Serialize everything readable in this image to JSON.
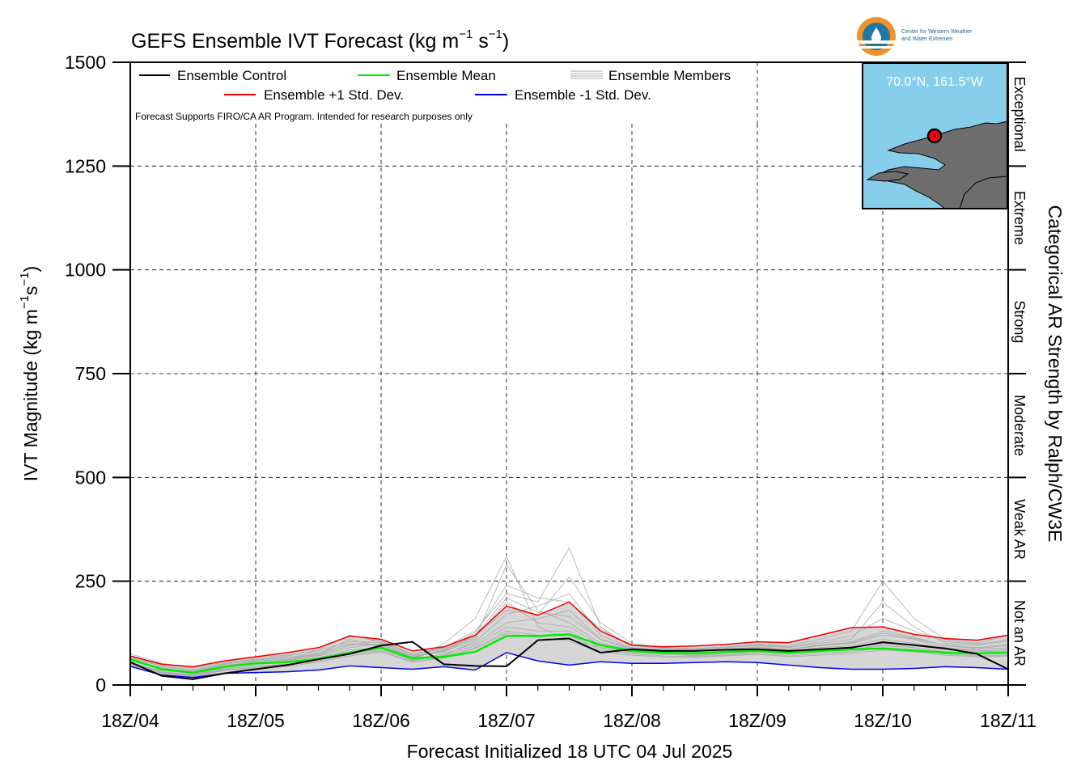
{
  "title_main": "GEFS Ensemble IVT Forecast (kg m",
  "title_exp1": "−1",
  "title_mid": " s",
  "title_exp2": "−1",
  "title_end": ")",
  "ylabel": {
    "main": "IVT Magnitude (kg m",
    "exp1": "−1",
    "mid": "s",
    "exp2": "−1",
    "end": ")"
  },
  "xlabel": "Forecast Initialized 18 UTC 04 Jul 2025",
  "right_label": "Categorical AR Strength by Ralph/CW3E",
  "note": "Forecast Supports FIRO/CA AR Program. Intended for research purposes only",
  "inset_location": "70.0°N, 161.5°W",
  "logo_line1": "Center for Western Weather",
  "logo_line2": "and Water Extremes",
  "categories": [
    {
      "label": "Exceptional",
      "lo": 1250,
      "hi": 1500
    },
    {
      "label": "Extreme",
      "lo": 1000,
      "hi": 1250
    },
    {
      "label": "Strong",
      "lo": 750,
      "hi": 1000
    },
    {
      "label": "Moderate",
      "lo": 500,
      "hi": 750
    },
    {
      "label": "Weak AR",
      "lo": 250,
      "hi": 500
    },
    {
      "label": "Not an AR",
      "lo": 0,
      "hi": 250
    }
  ],
  "colors": {
    "control": "#000000",
    "mean": "#00ee00",
    "plus_std": "#ee0000",
    "minus_std": "#0000ee",
    "members": "#aaaaaa",
    "spread_fill": "#d6d6d6",
    "ocean": "#87ceeb",
    "land": "#6e6e6e",
    "point": "#ff0000"
  },
  "chart_data": {
    "type": "line",
    "title": "GEFS Ensemble IVT Forecast (kg m−1 s−1)",
    "xlabel": "Forecast Initialized 18 UTC 04 Jul 2025",
    "ylabel": "IVT Magnitude (kg m−1s−1)",
    "ylim": [
      0,
      1500
    ],
    "yticks": [
      0,
      250,
      500,
      750,
      1000,
      1250,
      1500
    ],
    "xlim": [
      0,
      168
    ],
    "x_unit": "forecast hour",
    "xtick_hours": [
      0,
      24,
      48,
      72,
      96,
      120,
      144,
      168
    ],
    "xtick_labels": [
      "18Z/04",
      "18Z/05",
      "18Z/06",
      "18Z/07",
      "18Z/08",
      "18Z/09",
      "18Z/10",
      "18Z/11"
    ],
    "grid": true,
    "legend_position": "top-left",
    "x": [
      0,
      6,
      12,
      18,
      24,
      30,
      36,
      42,
      48,
      54,
      60,
      66,
      72,
      78,
      84,
      90,
      96,
      102,
      108,
      114,
      120,
      126,
      132,
      138,
      144,
      150,
      156,
      162,
      168
    ],
    "series": [
      {
        "name": "Ensemble Control",
        "role": "control",
        "values": [
          55,
          22,
          14,
          28,
          38,
          48,
          62,
          75,
          95,
          104,
          50,
          46,
          45,
          108,
          112,
          78,
          86,
          82,
          82,
          85,
          86,
          82,
          86,
          90,
          103,
          96,
          88,
          75,
          38
        ]
      },
      {
        "name": "Ensemble Mean",
        "role": "mean",
        "values": [
          62,
          38,
          30,
          44,
          52,
          55,
          63,
          78,
          90,
          64,
          68,
          80,
          118,
          118,
          122,
          96,
          82,
          78,
          76,
          80,
          82,
          78,
          82,
          86,
          88,
          83,
          78,
          76,
          78
        ]
      },
      {
        "name": "Ensemble +1 Std. Dev.",
        "role": "plus_std",
        "values": [
          70,
          50,
          44,
          58,
          68,
          78,
          90,
          118,
          110,
          82,
          92,
          120,
          190,
          168,
          200,
          130,
          96,
          92,
          94,
          98,
          104,
          102,
          120,
          138,
          140,
          122,
          112,
          108,
          120
        ]
      },
      {
        "name": "Ensemble -1 Std. Dev.",
        "role": "minus_std",
        "values": [
          45,
          24,
          18,
          28,
          30,
          32,
          36,
          46,
          42,
          38,
          44,
          36,
          78,
          58,
          48,
          56,
          52,
          52,
          54,
          56,
          54,
          48,
          42,
          38,
          38,
          40,
          44,
          42,
          38
        ]
      },
      {
        "name": "Ensemble Members",
        "role": "members",
        "members": [
          [
            60,
            40,
            32,
            48,
            55,
            60,
            72,
            95,
            110,
            70,
            80,
            110,
            290,
            180,
            150,
            100,
            85,
            80,
            80,
            85,
            90,
            85,
            95,
            100,
            120,
            110,
            90,
            85,
            90
          ],
          [
            55,
            30,
            25,
            40,
            45,
            50,
            60,
            80,
            90,
            60,
            100,
            160,
            310,
            140,
            110,
            90,
            80,
            75,
            70,
            75,
            80,
            75,
            80,
            85,
            95,
            90,
            80,
            75,
            80
          ],
          [
            65,
            45,
            35,
            50,
            60,
            70,
            85,
            120,
            105,
            75,
            90,
            130,
            220,
            200,
            330,
            140,
            90,
            85,
            85,
            90,
            95,
            90,
            100,
            110,
            200,
            140,
            100,
            95,
            110
          ],
          [
            70,
            50,
            40,
            55,
            62,
            65,
            75,
            100,
            95,
            65,
            85,
            120,
            180,
            170,
            260,
            150,
            100,
            90,
            88,
            92,
            98,
            95,
            110,
            130,
            250,
            160,
            110,
            100,
            120
          ],
          [
            50,
            35,
            28,
            42,
            50,
            55,
            65,
            85,
            88,
            62,
            75,
            100,
            150,
            160,
            180,
            110,
            85,
            80,
            78,
            82,
            85,
            80,
            90,
            95,
            110,
            100,
            88,
            82,
            85
          ],
          [
            58,
            42,
            30,
            45,
            52,
            58,
            70,
            90,
            100,
            68,
            82,
            115,
            200,
            150,
            140,
            95,
            82,
            78,
            76,
            80,
            84,
            78,
            86,
            92,
            100,
            95,
            85,
            80,
            82
          ],
          [
            62,
            38,
            26,
            44,
            58,
            62,
            74,
            110,
            92,
            58,
            72,
            105,
            170,
            190,
            220,
            120,
            88,
            82,
            80,
            86,
            92,
            86,
            96,
            104,
            130,
            115,
            95,
            88,
            95
          ],
          [
            45,
            28,
            20,
            35,
            40,
            45,
            55,
            70,
            80,
            55,
            65,
            90,
            130,
            120,
            120,
            85,
            75,
            70,
            68,
            72,
            76,
            70,
            76,
            80,
            90,
            85,
            75,
            70,
            72
          ],
          [
            75,
            52,
            42,
            58,
            66,
            72,
            82,
            105,
            102,
            72,
            88,
            125,
            240,
            210,
            200,
            135,
            95,
            88,
            86,
            90,
            96,
            92,
            104,
            118,
            160,
            130,
            105,
            98,
            105
          ],
          [
            52,
            32,
            24,
            38,
            46,
            50,
            62,
            78,
            85,
            60,
            70,
            95,
            140,
            130,
            130,
            90,
            78,
            74,
            72,
            76,
            80,
            74,
            82,
            86,
            96,
            90,
            80,
            76,
            78
          ],
          [
            68,
            46,
            36,
            52,
            60,
            66,
            78,
            98,
            98,
            66,
            84,
            118,
            210,
            175,
            165,
            110,
            88,
            84,
            82,
            86,
            90,
            86,
            94,
            102,
            125,
            112,
            96,
            90,
            98
          ],
          [
            48,
            30,
            22,
            36,
            42,
            48,
            58,
            74,
            82,
            56,
            66,
            88,
            125,
            115,
            105,
            80,
            72,
            68,
            66,
            70,
            74,
            68,
            72,
            76,
            84,
            80,
            72,
            68,
            70
          ]
        ]
      }
    ]
  }
}
